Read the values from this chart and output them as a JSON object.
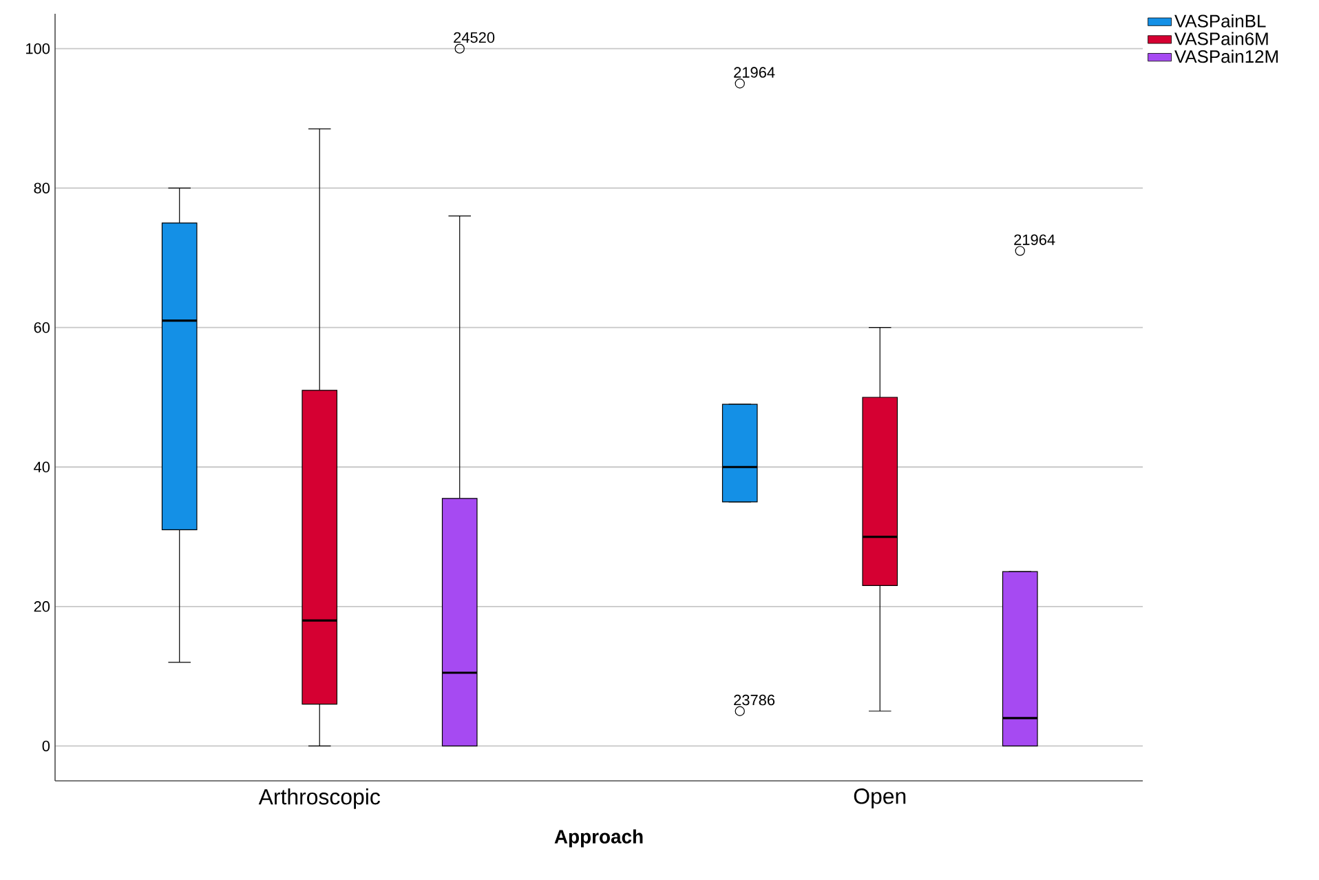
{
  "chart_data": {
    "type": "box",
    "xlabel": "Approach",
    "categories": [
      "Arthroscopic",
      "Open"
    ],
    "series": [
      {
        "name": "VASPainBL",
        "color": "#1490e6",
        "boxes": [
          {
            "low": 12,
            "q1": 31,
            "median": 61,
            "q3": 75,
            "high": 80
          },
          {
            "low": 35,
            "q1": 35,
            "median": 40,
            "q3": 49,
            "high": 49,
            "outliers": [
              95,
              5
            ]
          }
        ]
      },
      {
        "name": "VASPain6M",
        "color": "#d50032",
        "boxes": [
          {
            "low": 0,
            "q1": 6,
            "median": 18,
            "q3": 51,
            "high": 88.5
          },
          {
            "low": 5,
            "q1": 23,
            "median": 30,
            "q3": 50,
            "high": 60
          }
        ]
      },
      {
        "name": "VASPain12M",
        "color": "#a64af2",
        "boxes": [
          {
            "low": 0,
            "q1": 0,
            "median": 10.5,
            "q3": 35.5,
            "high": 76,
            "outliers": [
              100
            ]
          },
          {
            "low": 0,
            "q1": 0,
            "median": 4,
            "q3": 25,
            "high": 25,
            "outliers": [
              71
            ]
          }
        ]
      }
    ],
    "ylim": [
      -5,
      105
    ],
    "yticks": [
      0,
      20,
      40,
      60,
      80,
      100
    ],
    "grid": "y",
    "legend": "top right",
    "annotations": [
      "21964",
      "23786",
      "24520",
      "21964"
    ]
  }
}
